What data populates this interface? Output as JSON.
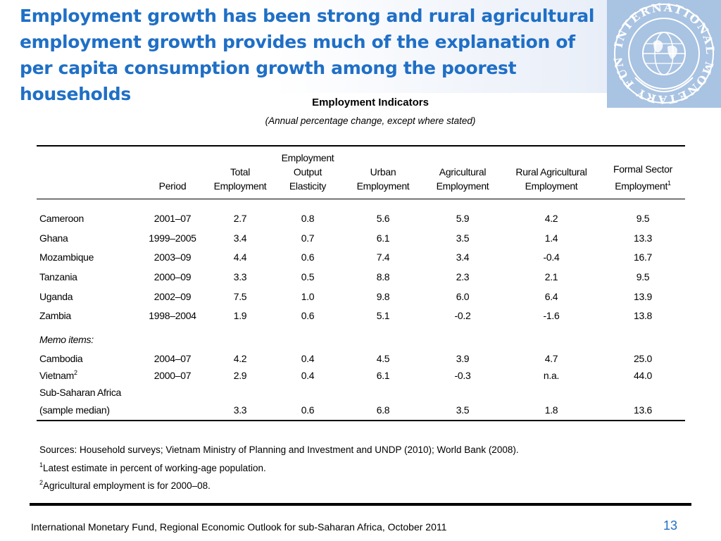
{
  "slide": {
    "title": "Employment growth has been strong  and rural agricultural employment growth provides much of the explanation of per capita consumption growth among the poorest households",
    "logo_text": "INTERNATIONAL MONETARY FUND",
    "page_number": "13",
    "footer": "International Monetary Fund, Regional Economic Outlook for sub-Saharan Africa, October 2011"
  },
  "table": {
    "title": "Employment Indicators",
    "subtitle": "(Annual percentage change, except where stated)",
    "headers": {
      "period": [
        "Period"
      ],
      "total_employment": [
        "Total",
        "Employment"
      ],
      "elasticity": [
        "Employment",
        "Output",
        "Elasticity"
      ],
      "urban": [
        "Urban",
        "Employment"
      ],
      "agricultural": [
        "Agricultural",
        "Employment"
      ],
      "rural_agricultural": [
        "Rural Agricultural",
        "Employment"
      ],
      "formal_sector": [
        "Formal Sector",
        "Employment"
      ],
      "formal_sector_note": "1"
    },
    "rows": [
      {
        "country": "Cameroon",
        "period": "2001–07",
        "total": "2.7",
        "elasticity": "0.8",
        "urban": "5.6",
        "agri": "5.9",
        "rural_agri": "4.2",
        "formal": "9.5"
      },
      {
        "country": "Ghana",
        "period": "1999–2005",
        "total": "3.4",
        "elasticity": "0.7",
        "urban": "6.1",
        "agri": "3.5",
        "rural_agri": "1.4",
        "formal": "13.3"
      },
      {
        "country": "Mozambique",
        "period": "2003–09",
        "total": "4.4",
        "elasticity": "0.6",
        "urban": "7.4",
        "agri": "3.4",
        "rural_agri": "-0.4",
        "formal": "16.7"
      },
      {
        "country": "Tanzania",
        "period": "2000–09",
        "total": "3.3",
        "elasticity": "0.5",
        "urban": "8.8",
        "agri": "2.3",
        "rural_agri": "2.1",
        "formal": "9.5"
      },
      {
        "country": "Uganda",
        "period": "2002–09",
        "total": "7.5",
        "elasticity": "1.0",
        "urban": "9.8",
        "agri": "6.0",
        "rural_agri": "6.4",
        "formal": "13.9"
      },
      {
        "country": "Zambia",
        "period": "1998–2004",
        "total": "1.9",
        "elasticity": "0.6",
        "urban": "5.1",
        "agri": "-0.2",
        "rural_agri": "-1.6",
        "formal": "13.8"
      }
    ],
    "memo_label": "Memo items:",
    "memo_rows": [
      {
        "country": "Cambodia",
        "note": "",
        "period": "2004–07",
        "total": "4.2",
        "elasticity": "0.4",
        "urban": "4.5",
        "agri": "3.9",
        "rural_agri": "4.7",
        "formal": "25.0"
      },
      {
        "country": "Vietnam",
        "note": "2",
        "period": "2000–07",
        "total": "2.9",
        "elasticity": "0.4",
        "urban": "6.1",
        "agri": "-0.3",
        "rural_agri": "n.a.",
        "formal": "44.0"
      }
    ],
    "ssa_row": {
      "label_line1": "Sub-Saharan Africa",
      "label_line2": "(sample median)",
      "period": "",
      "total": "3.3",
      "elasticity": "0.6",
      "urban": "6.8",
      "agri": "3.5",
      "rural_agri": "1.8",
      "formal": "13.6"
    }
  },
  "notes": {
    "sources": "Sources: Household surveys; Vietnam Ministry of Planning and Investment and UNDP (2010); World Bank (2008).",
    "note1_marker": "1",
    "note1": "Latest estimate in percent of working-age population.",
    "note2_marker": "2",
    "note2": "Agricultural employment is for 2000–08."
  },
  "colors": {
    "title_blue": "#1f6fc6",
    "logo_bg": "#a9c3e2"
  }
}
